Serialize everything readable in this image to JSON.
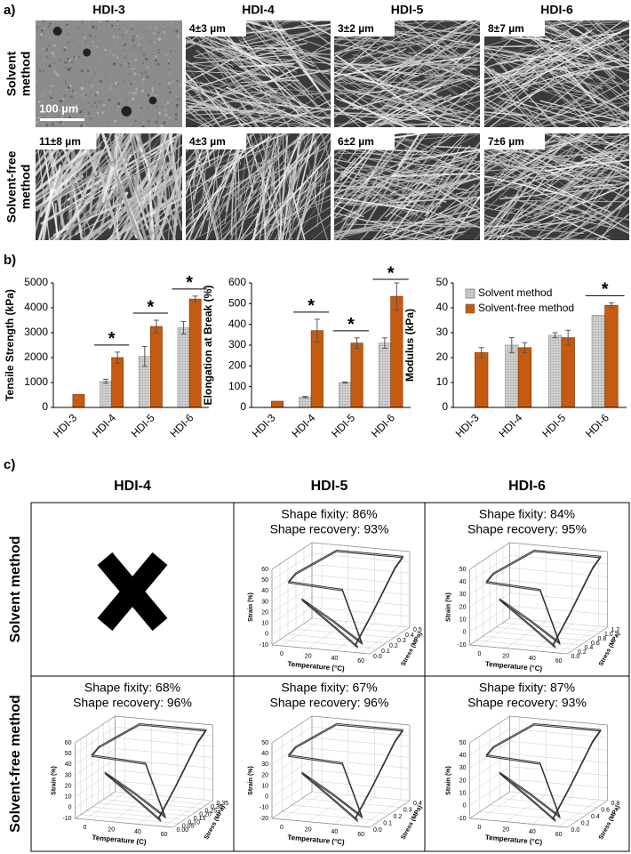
{
  "panel_a": {
    "label": "a)",
    "columns": [
      "HDI-3",
      "HDI-4",
      "HDI-5",
      "HDI-6"
    ],
    "rows": [
      [
        "Solvent",
        "method"
      ],
      [
        "Solvent-free",
        "method"
      ]
    ],
    "diameters": [
      [
        null,
        "4±3 µm",
        "3±2 µm",
        "8±7 µm"
      ],
      [
        "11±8 µm",
        "4±3 µm",
        "6±2 µm",
        "7±6 µm"
      ]
    ],
    "scale_bar": "100 µm"
  },
  "panel_b_label": "b)",
  "chart_data": [
    {
      "type": "bar",
      "ylabel": "Tensile Strength (kPa)",
      "categories": [
        "HDI-3",
        "HDI-4",
        "HDI-5",
        "HDI-6"
      ],
      "series": [
        {
          "color": "#c8c8c8",
          "values": [
            null,
            1050,
            2050,
            3200
          ],
          "errors": [
            null,
            80,
            400,
            250
          ]
        },
        {
          "color": "#c55a11",
          "values": [
            520,
            2000,
            3250,
            4350
          ],
          "errors": [
            null,
            220,
            250,
            120
          ]
        }
      ],
      "ylim": [
        0,
        5000
      ],
      "yticks": [
        0,
        1000,
        2000,
        3000,
        4000,
        5000
      ],
      "annotations": [
        {
          "text": "*",
          "category": "HDI-4"
        },
        {
          "text": "*",
          "category": "HDI-5"
        },
        {
          "text": "*",
          "category": "HDI-6"
        }
      ]
    },
    {
      "type": "bar",
      "ylabel": "Elongation at Break (%)",
      "categories": [
        "HDI-3",
        "HDI-4",
        "HDI-5",
        "HDI-6"
      ],
      "series": [
        {
          "color": "#c8c8c8",
          "values": [
            null,
            50,
            120,
            310
          ],
          "errors": [
            null,
            3,
            3,
            25
          ]
        },
        {
          "color": "#c55a11",
          "values": [
            30,
            370,
            310,
            535
          ],
          "errors": [
            null,
            55,
            25,
            65
          ]
        }
      ],
      "ylim": [
        0,
        600
      ],
      "yticks": [
        0,
        100,
        200,
        300,
        400,
        500,
        600
      ],
      "annotations": [
        {
          "text": "*",
          "category": "HDI-4"
        },
        {
          "text": "*",
          "category": "HDI-5"
        },
        {
          "text": "*",
          "category": "HDI-6"
        }
      ]
    },
    {
      "type": "bar",
      "ylabel": "Modulus (kPa)",
      "categories": [
        "HDI-3",
        "HDI-4",
        "HDI-5",
        "HDI-6"
      ],
      "series": [
        {
          "name": "Solvent method",
          "color": "#c8c8c8",
          "values": [
            null,
            25,
            29,
            37
          ],
          "errors": [
            null,
            3,
            1,
            null
          ]
        },
        {
          "name": "Solvent-free method",
          "color": "#c55a11",
          "values": [
            22,
            24,
            28,
            41
          ],
          "errors": [
            2,
            2,
            3,
            1
          ]
        }
      ],
      "ylim": [
        0,
        50
      ],
      "yticks": [
        0,
        10,
        20,
        30,
        40,
        50
      ],
      "legend": "upper left",
      "annotations": [
        {
          "text": "*",
          "category": "HDI-6"
        }
      ]
    }
  ],
  "panel_c": {
    "label": "c)",
    "columns": [
      "HDI-4",
      "HDI-5",
      "HDI-6"
    ],
    "rows": [
      {
        "label": "Solvent method",
        "cells": [
          {
            "fixity": "Shape fixity: 86%",
            "recovery": "Shape recovery: 93%",
            "strain_label": "Strain (%)",
            "temp_label": "Temperature (°C)",
            "stress_label": "Stress (MPa)",
            "strain_ticks": [
              "60",
              "50",
              "40",
              "30",
              "20",
              "10",
              "0",
              "-10"
            ],
            "temp_ticks": [
              "0",
              "20",
              "40",
              "60"
            ],
            "stress_ticks": [
              "0.0",
              "0.1",
              "0.2",
              "0.3",
              "0.4",
              "0.5"
            ]
          },
          {
            "fixity": "Shape fixity: 84%",
            "recovery": "Shape recovery: 95%",
            "strain_label": "Strain (%)",
            "temp_label": "Temperature (°C)",
            "stress_label": "Stress (MPa)",
            "strain_ticks": [
              "50",
              "40",
              "30",
              "20",
              "10",
              "0",
              "-10"
            ],
            "temp_ticks": [
              "0",
              "20",
              "40",
              "60"
            ],
            "stress_ticks": [
              "0.0",
              "0.2",
              "0.4",
              "0.6",
              "0.8",
              "1.0",
              "1.2"
            ]
          }
        ]
      },
      {
        "label": "Solvent-free method",
        "cells": [
          {
            "fixity": "Shape fixity: 68%",
            "recovery": "Shape recovery: 96%",
            "strain_label": "Strain (%)",
            "temp_label": "Temperature (C)",
            "stress_label": "Stress (MPa)",
            "strain_ticks": [
              "60",
              "50",
              "40",
              "30",
              "20",
              "10",
              "0",
              "-10"
            ],
            "temp_ticks": [
              "0",
              "20",
              "40",
              "60"
            ],
            "stress_ticks": [
              "0.00",
              "0.05",
              "0.10",
              "0.15",
              "0.20",
              "0.25",
              "0.30",
              "0.35"
            ]
          },
          {
            "fixity": "Shape fixity: 67%",
            "recovery": "Shape recovery: 96%",
            "strain_label": "Strain (%)",
            "temp_label": "Temperature (°C)",
            "stress_label": "Stress (MPa)",
            "strain_ticks": [
              "50",
              "40",
              "30",
              "20",
              "10",
              "0",
              "-10",
              "-20"
            ],
            "temp_ticks": [
              "0",
              "20",
              "40",
              "60"
            ],
            "stress_ticks": [
              "0.0",
              "0.1",
              "0.2",
              "0.3",
              "0.4"
            ]
          },
          {
            "fixity": "Shape fixity: 87%",
            "recovery": "Shape recovery: 93%",
            "strain_label": "Strain (%)",
            "temp_label": "Temperature (°C)",
            "stress_label": "Stress (MPa)",
            "strain_ticks": [
              "50",
              "40",
              "30",
              "20",
              "10",
              "0",
              "-10"
            ],
            "temp_ticks": [
              "0",
              "20",
              "40",
              "60"
            ],
            "stress_ticks": [
              "0.0",
              "0.2",
              "0.4",
              "0.6",
              "0.8"
            ]
          }
        ]
      }
    ]
  }
}
